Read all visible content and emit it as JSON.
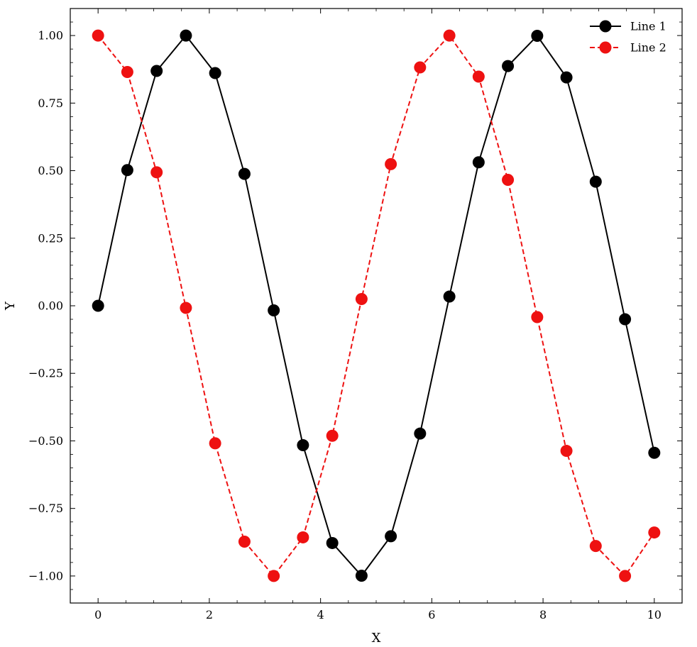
{
  "chart_data": {
    "type": "line",
    "title": "",
    "xlabel": "X",
    "ylabel": "Y",
    "xlim": [
      -0.5,
      10.5
    ],
    "ylim": [
      -1.1,
      1.1
    ],
    "xticks": [
      0,
      2,
      4,
      6,
      8,
      10
    ],
    "xtick_labels": [
      "0",
      "2",
      "4",
      "6",
      "8",
      "10"
    ],
    "yticks": [
      -1.0,
      -0.75,
      -0.5,
      -0.25,
      0.0,
      0.25,
      0.5,
      0.75,
      1.0
    ],
    "ytick_labels": [
      "−1.00",
      "−0.75",
      "−0.50",
      "−0.25",
      "0.00",
      "0.25",
      "0.50",
      "0.75",
      "1.00"
    ],
    "grid": false,
    "legend_position": "top-right",
    "x": [
      0.0,
      0.526,
      1.053,
      1.579,
      2.105,
      2.632,
      3.158,
      3.684,
      4.211,
      4.737,
      5.263,
      5.789,
      6.316,
      6.842,
      7.368,
      7.895,
      8.421,
      8.947,
      9.474,
      10.0
    ],
    "series": [
      {
        "name": "Line 1",
        "color": "#000000",
        "linestyle": "solid",
        "marker": "circle",
        "values": [
          0.0,
          0.502,
          0.869,
          1.0,
          0.861,
          0.488,
          -0.017,
          -0.516,
          -0.878,
          -0.999,
          -0.853,
          -0.473,
          0.034,
          0.531,
          0.887,
          0.999,
          0.845,
          0.459,
          -0.05,
          -0.544
        ]
      },
      {
        "name": "Line 2",
        "color": "#ee1111",
        "linestyle": "dashed",
        "marker": "circle",
        "values": [
          1.0,
          0.865,
          0.494,
          -0.008,
          -0.509,
          -0.873,
          -1.0,
          -0.857,
          -0.481,
          0.025,
          0.524,
          0.882,
          1.0,
          0.848,
          0.466,
          -0.042,
          -0.537,
          -0.889,
          -1.0,
          -0.839
        ]
      }
    ]
  }
}
